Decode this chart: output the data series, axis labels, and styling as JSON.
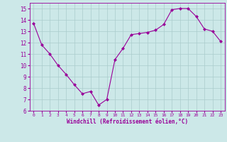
{
  "x": [
    0,
    1,
    2,
    3,
    4,
    5,
    6,
    7,
    8,
    9,
    10,
    11,
    12,
    13,
    14,
    15,
    16,
    17,
    18,
    19,
    20,
    21,
    22,
    23
  ],
  "y": [
    13.7,
    11.8,
    11.0,
    10.0,
    9.2,
    8.3,
    7.5,
    7.7,
    6.5,
    7.0,
    10.5,
    11.5,
    12.7,
    12.8,
    12.9,
    13.1,
    13.6,
    14.9,
    15.0,
    15.0,
    14.3,
    13.2,
    13.0,
    12.1
  ],
  "line_color": "#990099",
  "marker": "D",
  "marker_size": 2,
  "bg_color": "#cce8e8",
  "grid_color": "#aacccc",
  "xlabel": "Windchill (Refroidissement éolien,°C)",
  "xlabel_color": "#990099",
  "tick_color": "#990099",
  "xlim": [
    -0.5,
    23.5
  ],
  "ylim": [
    6,
    15.5
  ],
  "yticks": [
    6,
    7,
    8,
    9,
    10,
    11,
    12,
    13,
    14,
    15
  ],
  "xticks": [
    0,
    1,
    2,
    3,
    4,
    5,
    6,
    7,
    8,
    9,
    10,
    11,
    12,
    13,
    14,
    15,
    16,
    17,
    18,
    19,
    20,
    21,
    22,
    23
  ],
  "xtick_labels": [
    "0",
    "1",
    "2",
    "3",
    "4",
    "5",
    "6",
    "7",
    "8",
    "9",
    "10",
    "11",
    "12",
    "13",
    "14",
    "15",
    "16",
    "17",
    "18",
    "19",
    "20",
    "21",
    "22",
    "23"
  ]
}
